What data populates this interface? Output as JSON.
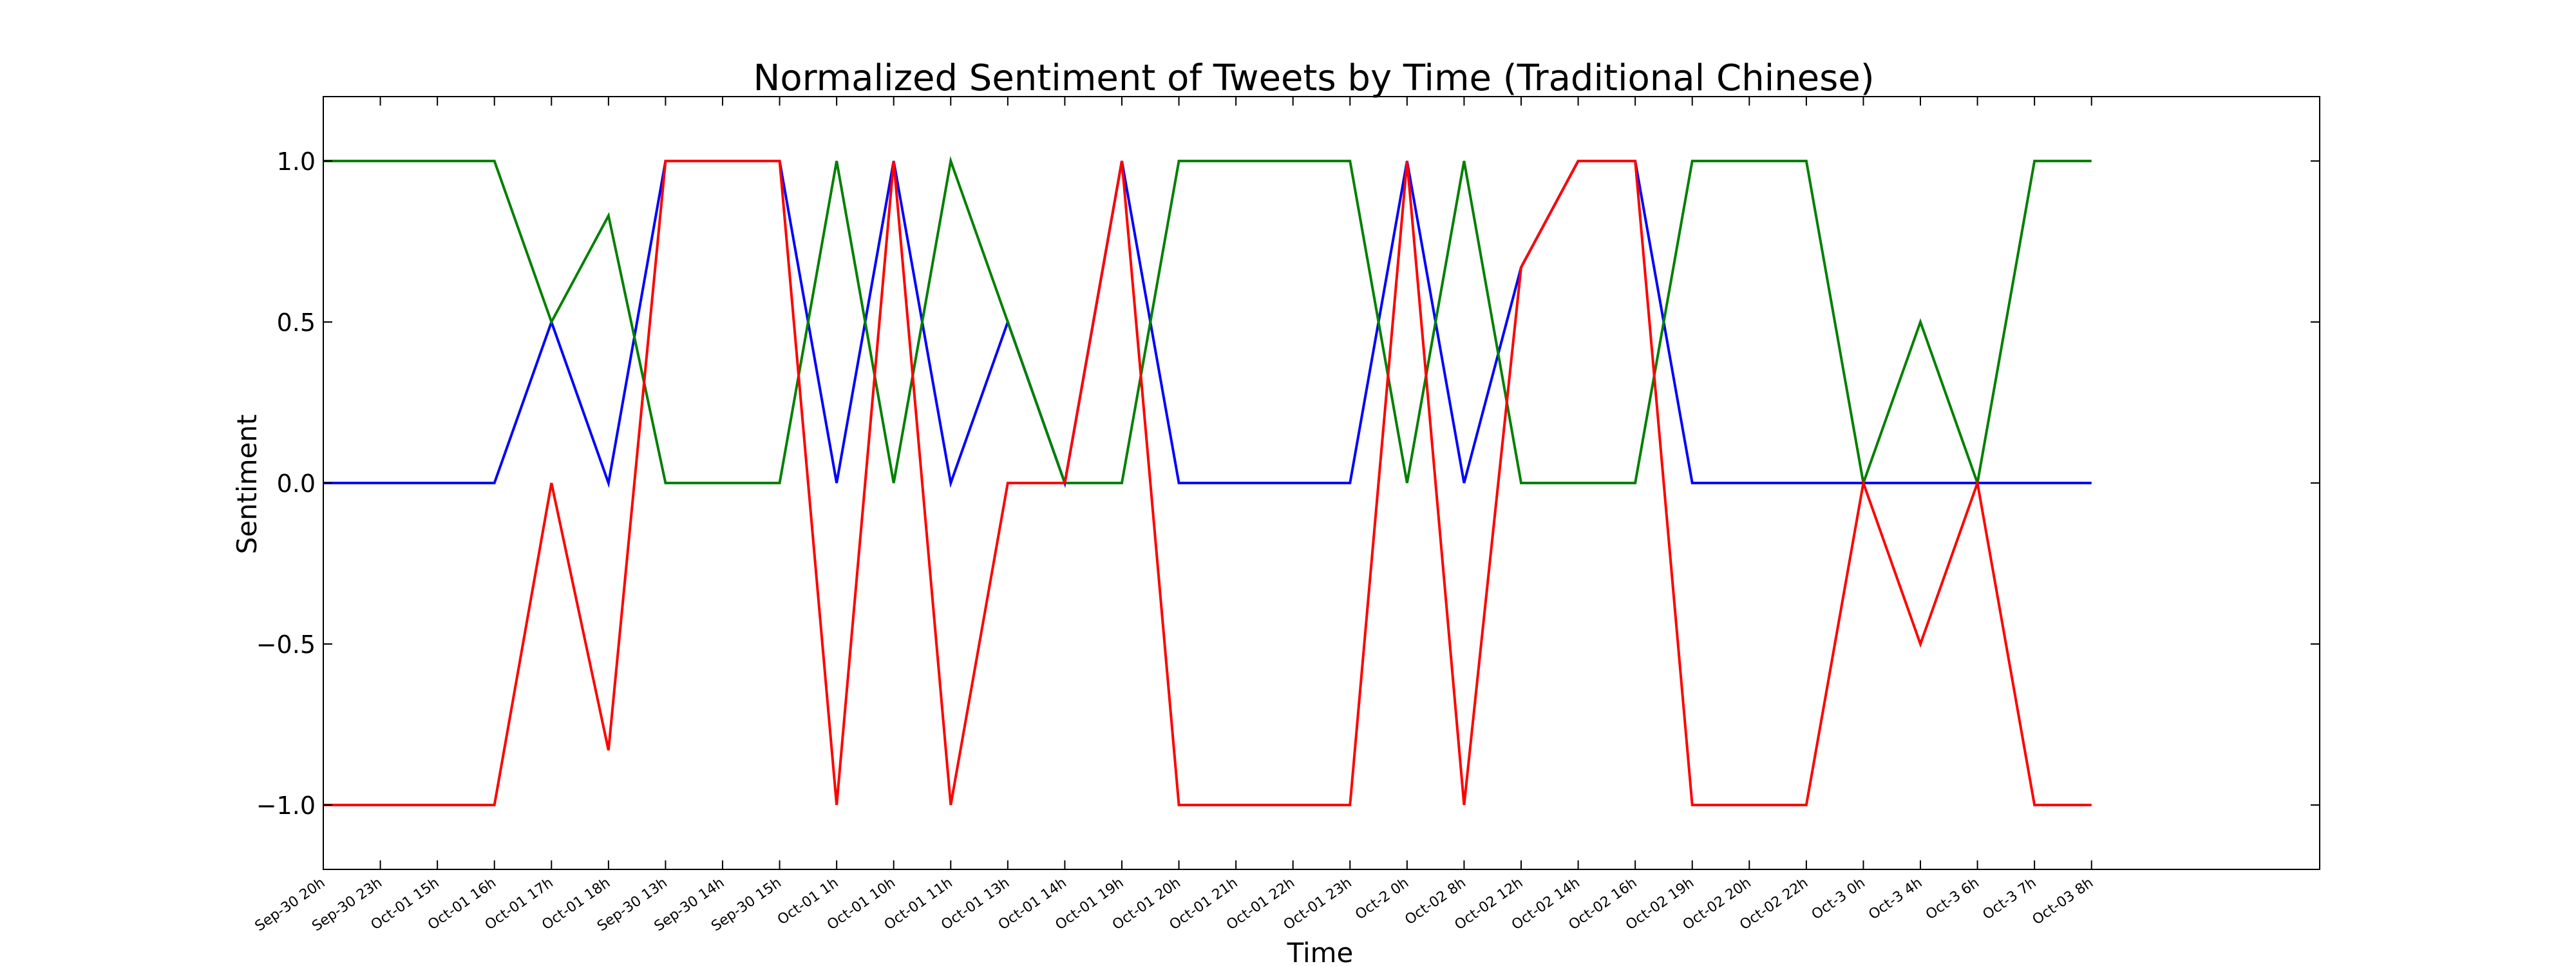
{
  "chart_data": {
    "type": "line",
    "title": "Normalized Sentiment of Tweets by Time (Traditional Chinese)",
    "xlabel": "Time",
    "ylabel": "Sentiment",
    "ylim": [
      -1.2,
      1.2
    ],
    "yticks": [
      1.0,
      0.5,
      0.0,
      -0.5,
      -1.0
    ],
    "ytick_labels": [
      "1.0",
      "0.5",
      "0.0",
      "−0.5",
      "−1.0"
    ],
    "x_range": [
      0,
      35
    ],
    "grid": false,
    "legend": "none",
    "categories": [
      "Sep-30 20h",
      "Sep-30 23h",
      "Oct-01 15h",
      "Oct-01 16h",
      "Oct-01 17h",
      "Oct-01 18h",
      "Sep-30 13h",
      "Sep-30 14h",
      "Sep-30 15h",
      "Oct-01 1h",
      "Oct-01 10h",
      "Oct-01 11h",
      "Oct-01 13h",
      "Oct-01 14h",
      "Oct-01 19h",
      "Oct-01 20h",
      "Oct-01 21h",
      "Oct-01 22h",
      "Oct-01 23h",
      "Oct-2 0h",
      "Oct-02 8h",
      "Oct-02 12h",
      "Oct-02 14h",
      "Oct-02 16h",
      "Oct-02 19h",
      "Oct-02 20h",
      "Oct-02 22h",
      "Oct-3 0h",
      "Oct-3 4h",
      "Oct-3 6h",
      "Oct-3 7h",
      "Oct-03 8h"
    ],
    "series": [
      {
        "color": "#0000ff",
        "values": [
          0,
          0,
          0,
          0,
          0.5,
          0,
          1,
          1,
          1,
          0,
          1,
          0,
          0.5,
          0,
          1,
          0,
          0,
          0,
          0,
          1,
          0,
          0.67,
          1,
          1,
          0,
          0,
          0,
          0,
          0,
          0,
          0,
          0
        ]
      },
      {
        "color": "#008000",
        "values": [
          1,
          1,
          1,
          1,
          0.5,
          0.83,
          0,
          0,
          0,
          1,
          0,
          1,
          0.5,
          0,
          0,
          1,
          1,
          1,
          1,
          0,
          1,
          0,
          0,
          0,
          1,
          1,
          1,
          0,
          0.5,
          0,
          1,
          1
        ]
      },
      {
        "color": "#ff0000",
        "values": [
          -1,
          -1,
          -1,
          -1,
          0,
          -0.83,
          1,
          1,
          1,
          -1,
          1,
          -1,
          0,
          0,
          1,
          -1,
          -1,
          -1,
          -1,
          1,
          -1,
          0.67,
          1,
          1,
          -1,
          -1,
          -1,
          0,
          -0.5,
          0,
          -1,
          -1
        ]
      }
    ]
  }
}
